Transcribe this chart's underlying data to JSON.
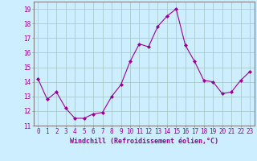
{
  "x": [
    0,
    1,
    2,
    3,
    4,
    5,
    6,
    7,
    8,
    9,
    10,
    11,
    12,
    13,
    14,
    15,
    16,
    17,
    18,
    19,
    20,
    21,
    22,
    23
  ],
  "y": [
    14.2,
    12.8,
    13.3,
    12.2,
    11.5,
    11.5,
    11.8,
    11.9,
    13.0,
    13.8,
    15.4,
    16.6,
    16.4,
    17.8,
    18.5,
    19.0,
    16.5,
    15.4,
    14.1,
    14.0,
    13.2,
    13.3,
    14.1,
    14.7
  ],
  "line_color": "#990099",
  "marker": "D",
  "marker_size": 2,
  "bg_color": "#cceeff",
  "grid_color": "#aacccc",
  "xlabel": "Windchill (Refroidissement éolien,°C)",
  "xlabel_fontsize": 6.0,
  "tick_fontsize": 5.5,
  "ylim": [
    11,
    19.5
  ],
  "yticks": [
    11,
    12,
    13,
    14,
    15,
    16,
    17,
    18,
    19
  ],
  "xlim": [
    -0.5,
    23.5
  ],
  "spine_color": "#808080"
}
